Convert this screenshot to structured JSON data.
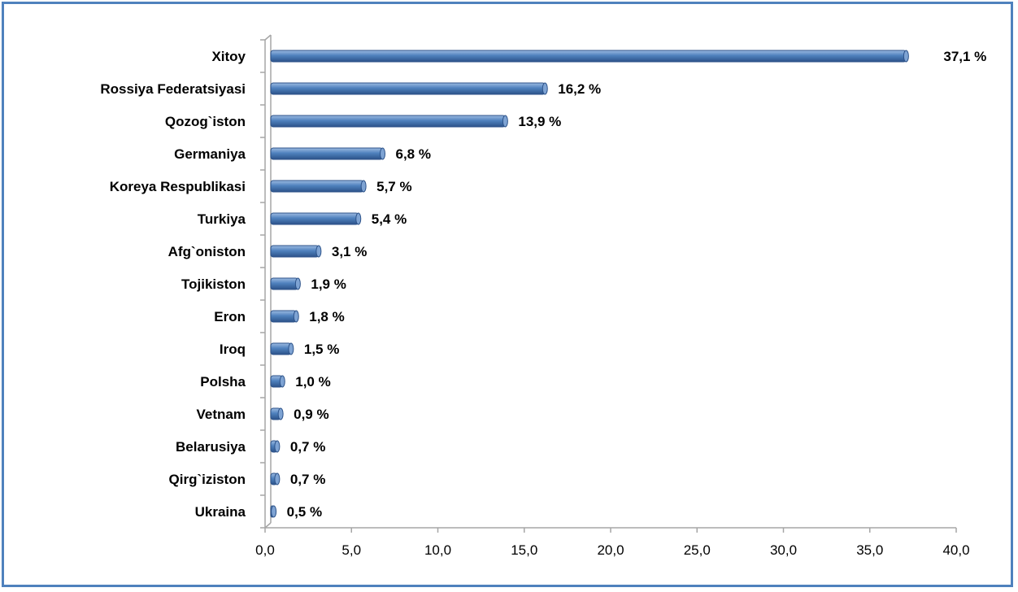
{
  "chart_data": {
    "type": "bar",
    "orientation": "horizontal",
    "categories": [
      "Xitoy",
      "Rossiya Federatsiyasi",
      "Qozog`iston",
      "Germaniya",
      "Koreya Respublikasi",
      "Turkiya",
      "Afg`oniston",
      "Tojikiston",
      "Eron",
      "Iroq",
      "Polsha",
      "Vetnam",
      "Belarusiya",
      "Qirg`iziston",
      "Ukraina"
    ],
    "values": [
      37.1,
      16.2,
      13.9,
      6.8,
      5.7,
      5.4,
      3.1,
      1.9,
      1.8,
      1.5,
      1.0,
      0.9,
      0.7,
      0.7,
      0.5
    ],
    "value_labels": [
      "37,1 %",
      "16,2 %",
      "13,9 %",
      "6,8 %",
      "5,7 %",
      "5,4 %",
      "3,1 %",
      "1,9 %",
      "1,8 %",
      "1,5 %",
      "1,0 %",
      "0,9 %",
      "0,7 %",
      "0,7 %",
      "0,5 %"
    ],
    "xlim": [
      0,
      40
    ],
    "xticks": [
      0,
      5,
      10,
      15,
      20,
      25,
      30,
      35,
      40
    ],
    "xtick_labels": [
      "0,0",
      "5,0",
      "10,0",
      "15,0",
      "20,0",
      "25,0",
      "30,0",
      "35,0",
      "40,0"
    ],
    "title": "",
    "xlabel": "",
    "ylabel": "",
    "grid": false,
    "legend": "none",
    "bar_color": "#4f81bd",
    "frame_color": "#4f81bd"
  }
}
